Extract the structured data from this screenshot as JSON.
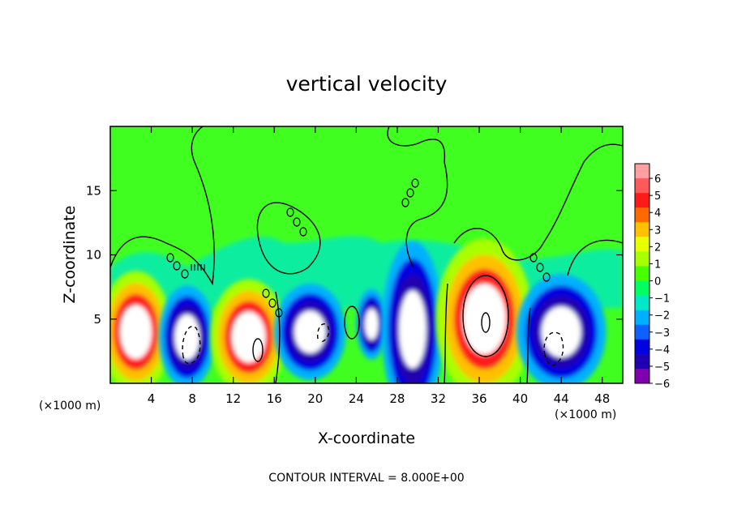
{
  "chart_data": {
    "type": "heatmap",
    "title": "vertical velocity",
    "xlabel": "X-coordinate",
    "ylabel": "Z-coordinate",
    "x_unit_left": "(×1000 m)",
    "x_unit_right": "(×1000 m)",
    "footer": "CONTOUR INTERVAL = 8.000E+00",
    "xlim": [
      0,
      50
    ],
    "ylim": [
      0,
      20
    ],
    "x_ticks": [
      4,
      8,
      12,
      16,
      20,
      24,
      28,
      32,
      36,
      40,
      44,
      48
    ],
    "y_ticks": [
      5,
      10,
      15
    ],
    "colorbar": {
      "labels": [
        "6",
        "5",
        "4",
        "3",
        "2",
        "1",
        "0",
        "−1",
        "−2",
        "−3",
        "−4",
        "−5",
        "−6"
      ],
      "colors": [
        "#ff9fa0",
        "#ff5a5a",
        "#ff1a1a",
        "#ff6a00",
        "#ffc000",
        "#e8ff00",
        "#a8ff00",
        "#48ff00",
        "#00ff60",
        "#00e8c8",
        "#00b0ff",
        "#1060ff",
        "#0000e0",
        "#2000b0",
        "#8000b0"
      ]
    },
    "background_color": "#40ff20",
    "features": [
      {
        "type": "updraft",
        "x": 2.5,
        "z": 4.0,
        "rx": 2.8,
        "rz": 3.8
      },
      {
        "type": "downdraft",
        "x": 7.5,
        "z": 3.6,
        "rx": 2.2,
        "rz": 3.2
      },
      {
        "type": "updraft",
        "x": 13.5,
        "z": 3.6,
        "rx": 3.0,
        "rz": 3.6
      },
      {
        "type": "downdraft",
        "x": 19.5,
        "z": 4.0,
        "rx": 2.8,
        "rz": 3.0
      },
      {
        "type": "downdraft",
        "x": 25.5,
        "z": 4.6,
        "rx": 1.2,
        "rz": 2.2
      },
      {
        "type": "downdraft",
        "x": 29.5,
        "z": 4.2,
        "rx": 2.4,
        "rz": 5.5
      },
      {
        "type": "updraft",
        "x": 36.5,
        "z": 5.0,
        "rx": 3.8,
        "rz": 5.0
      },
      {
        "type": "downdraft",
        "x": 44.0,
        "z": 4.0,
        "rx": 3.5,
        "rz": 3.6
      }
    ]
  }
}
